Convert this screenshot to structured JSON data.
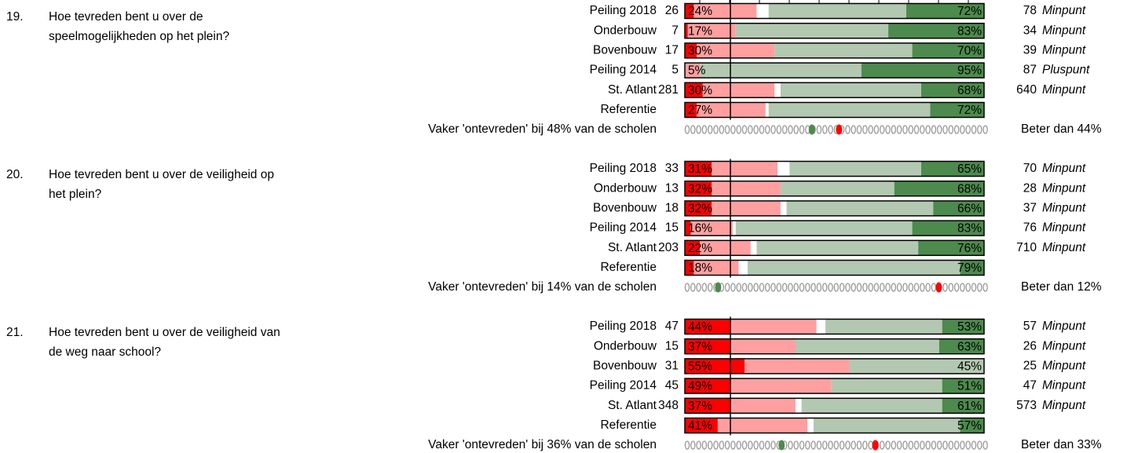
{
  "colors": [
    "#ff0000",
    "#ff9f9f",
    "#ffffff",
    "#b3c8b0",
    "#4d8a4d"
  ],
  "dot_colors": {
    "green": "#4d8a4d",
    "red": "#ff0000"
  },
  "questions": [
    {
      "number": "19.",
      "lines": [
        "Hoe tevreden bent u over de",
        "speelmogelijkheden op het plein?"
      ],
      "rows": [
        {
          "label": "Peiling 2018",
          "n": 26,
          "segments": [
            3,
            21,
            4,
            46,
            26
          ],
          "neg_label": "24%",
          "pos_label": "72%",
          "total": 78,
          "verdict": "Minpunt"
        },
        {
          "label": "Onderbouw",
          "n": 7,
          "segments": [
            1,
            16,
            0,
            51,
            32
          ],
          "neg_label": "17%",
          "pos_label": "83%",
          "total": 34,
          "verdict": "Minpunt"
        },
        {
          "label": "Bovenbouw",
          "n": 17,
          "segments": [
            4,
            26,
            0,
            46,
            24
          ],
          "neg_label": "30%",
          "pos_label": "70%",
          "total": 39,
          "verdict": "Minpunt"
        },
        {
          "label": "Peiling 2014",
          "n": 5,
          "segments": [
            0,
            5,
            0,
            54,
            41
          ],
          "neg_label": "5%",
          "pos_label": "95%",
          "total": 87,
          "verdict": "Pluspunt"
        },
        {
          "label": "St. Atlant",
          "n": 281,
          "segments": [
            6,
            24,
            2,
            47,
            21
          ],
          "neg_label": "30%",
          "pos_label": "68%",
          "total": 640,
          "verdict": "Minpunt"
        },
        {
          "label": "Referentie",
          "segments": [
            4,
            23,
            1,
            54,
            18
          ],
          "neg_label": "27%",
          "pos_label": "72%"
        }
      ],
      "summary": "Vaker 'ontevreden' bij 48% van de scholen",
      "dots": {
        "green": 42,
        "red": 51
      },
      "beter": "Beter dan 44%"
    },
    {
      "number": "20.",
      "lines": [
        "Hoe tevreden bent u over de veiligheid op",
        "het plein?"
      ],
      "rows": [
        {
          "label": "Peiling 2018",
          "n": 33,
          "segments": [
            9,
            22,
            4,
            44,
            21
          ],
          "neg_label": "31%",
          "pos_label": "65%",
          "total": 70,
          "verdict": "Minpunt"
        },
        {
          "label": "Onderbouw",
          "n": 13,
          "segments": [
            9,
            23,
            0,
            38,
            30
          ],
          "neg_label": "32%",
          "pos_label": "68%",
          "total": 28,
          "verdict": "Minpunt"
        },
        {
          "label": "Bovenbouw",
          "n": 18,
          "segments": [
            9,
            23,
            2,
            49,
            17
          ],
          "neg_label": "32%",
          "pos_label": "66%",
          "total": 37,
          "verdict": "Minpunt"
        },
        {
          "label": "Peiling 2014",
          "n": 15,
          "segments": [
            2,
            14,
            1,
            59,
            24
          ],
          "neg_label": "16%",
          "pos_label": "83%",
          "total": 76,
          "verdict": "Minpunt"
        },
        {
          "label": "St. Atlant",
          "n": 203,
          "segments": [
            5,
            17,
            2,
            54,
            22
          ],
          "neg_label": "22%",
          "pos_label": "76%",
          "total": 710,
          "verdict": "Minpunt"
        },
        {
          "label": "Referentie",
          "segments": [
            3,
            15,
            3,
            71,
            8
          ],
          "neg_label": "18%",
          "pos_label": "79%"
        }
      ],
      "summary": "Vaker 'ontevreden' bij 14% van de scholen",
      "dots": {
        "green": 11,
        "red": 84
      },
      "beter": "Beter dan 12%"
    },
    {
      "number": "21.",
      "lines": [
        "Hoe tevreden bent u over de veiligheid van",
        "de weg naar school?"
      ],
      "rows": [
        {
          "label": "Peiling 2018",
          "n": 47,
          "segments": [
            15,
            29,
            3,
            39,
            14
          ],
          "neg_label": "44%",
          "pos_label": "53%",
          "total": 57,
          "verdict": "Minpunt"
        },
        {
          "label": "Onderbouw",
          "n": 15,
          "segments": [
            15,
            22,
            0,
            48,
            15
          ],
          "neg_label": "37%",
          "pos_label": "63%",
          "total": 26,
          "verdict": "Minpunt"
        },
        {
          "label": "Bovenbouw",
          "n": 31,
          "segments": [
            20,
            35,
            0,
            45,
            0
          ],
          "neg_label": "55%",
          "pos_label": "45%",
          "total": 25,
          "verdict": "Minpunt"
        },
        {
          "label": "Peiling 2014",
          "n": 45,
          "segments": [
            15,
            34,
            0,
            37,
            14
          ],
          "neg_label": "49%",
          "pos_label": "51%",
          "total": 47,
          "verdict": "Minpunt"
        },
        {
          "label": "St. Atlant",
          "n": 348,
          "segments": [
            15,
            22,
            2,
            47,
            14
          ],
          "neg_label": "37%",
          "pos_label": "61%",
          "total": 573,
          "verdict": "Minpunt"
        },
        {
          "label": "Referentie",
          "segments": [
            11,
            30,
            2,
            49,
            8
          ],
          "neg_label": "41%",
          "pos_label": "57%"
        }
      ],
      "summary": "Vaker 'ontevreden' bij 36% van de scholen",
      "dots": {
        "green": 32,
        "red": 63
      },
      "beter": "Beter dan 33%"
    }
  ]
}
